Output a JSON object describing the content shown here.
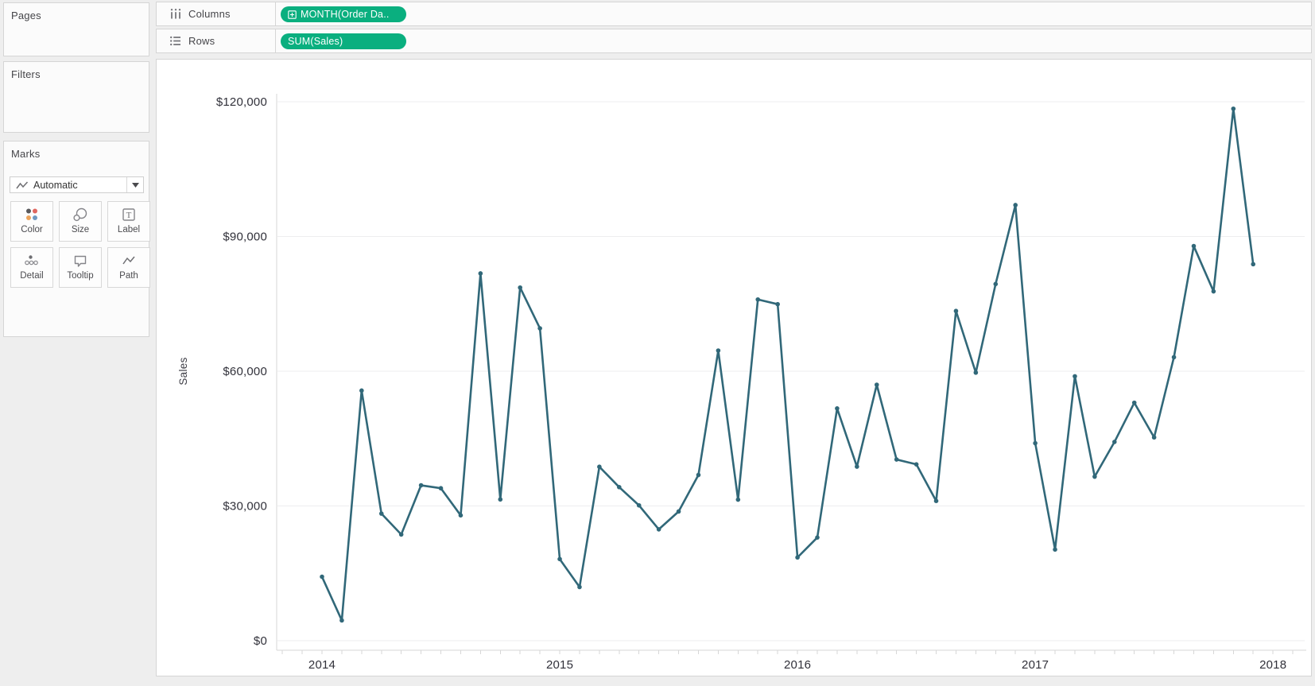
{
  "panels": {
    "pages": {
      "title": "Pages"
    },
    "filters": {
      "title": "Filters"
    },
    "marks": {
      "title": "Marks",
      "mark_type_label": "Automatic",
      "buttons": [
        {
          "label": "Color",
          "icon": "color-icon"
        },
        {
          "label": "Size",
          "icon": "size-icon"
        },
        {
          "label": "Label",
          "icon": "label-icon"
        },
        {
          "label": "Detail",
          "icon": "detail-icon"
        },
        {
          "label": "Tooltip",
          "icon": "tooltip-icon"
        },
        {
          "label": "Path",
          "icon": "path-icon"
        }
      ]
    }
  },
  "shelves": {
    "columns": {
      "label": "Columns",
      "pill": "MONTH(Order Da..",
      "pill_icon": "plus-box-icon"
    },
    "rows": {
      "label": "Rows",
      "pill": "SUM(Sales)"
    }
  },
  "colors": {
    "pill_green": "#0aaf7f",
    "line": "#316879",
    "gridline": "#ededef",
    "axis_line": "#d7d7d7",
    "tick_text": "#31313a",
    "axis_title_text": "#3c3c44"
  },
  "chart_data": {
    "type": "line",
    "ylabel": "Sales",
    "x_interval": "month",
    "x_start": "2014-01",
    "x_end": "2017-12",
    "x_ticks": [
      {
        "label": "2014",
        "month_index": 0
      },
      {
        "label": "2015",
        "month_index": 12
      },
      {
        "label": "2016",
        "month_index": 24
      },
      {
        "label": "2017",
        "month_index": 36
      },
      {
        "label": "2018",
        "month_index": 48
      }
    ],
    "y_ticks": [
      {
        "label": "$0",
        "value": 0
      },
      {
        "label": "$30,000",
        "value": 30000
      },
      {
        "label": "$60,000",
        "value": 60000
      },
      {
        "label": "$90,000",
        "value": 90000
      },
      {
        "label": "$120,000",
        "value": 120000
      }
    ],
    "ylim": [
      0,
      120000
    ],
    "grid": "horizontal",
    "series": [
      {
        "name": "SUM(Sales)",
        "color": "#316879",
        "values": [
          14237,
          4520,
          55691,
          28295,
          23648,
          34595,
          33946,
          27909,
          81777,
          31453,
          78629,
          69545,
          18174,
          11951,
          38726,
          34195,
          30131,
          24797,
          28765,
          36898,
          64595,
          31404,
          75973,
          74920,
          18542,
          22978,
          51715,
          38750,
          56987,
          40344,
          39262,
          31115,
          73410,
          59687,
          79412,
          96999,
          43971,
          20301,
          58872,
          36522,
          44261,
          52982,
          45264,
          63121,
          87867,
          77777,
          118448,
          83829
        ]
      }
    ]
  }
}
